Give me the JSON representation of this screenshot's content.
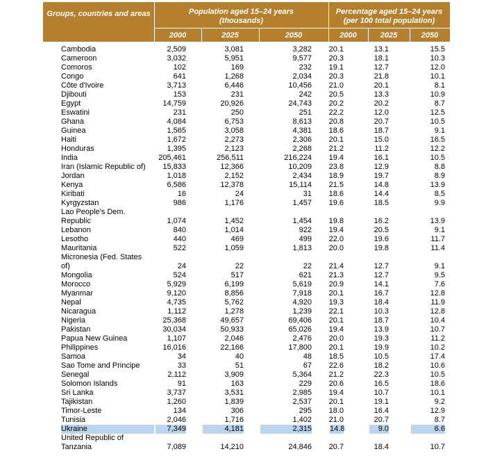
{
  "header": {
    "group_label": "Groups, countries and areas",
    "population": {
      "title": "Population aged 15–24 years",
      "subtitle": "(thousands)",
      "years": [
        "2000",
        "2025",
        "2050"
      ]
    },
    "percentage": {
      "title": "Percentage aged 15–24 years",
      "subtitle": "(per 100 total population)",
      "years": [
        "2000",
        "2025",
        "2050"
      ]
    }
  },
  "table": {
    "highlight_row": 40,
    "rows": [
      {
        "name": [
          "Cambodia"
        ],
        "cells": [
          "2,509",
          "3,081",
          "3,282",
          "20.1",
          "13.1",
          "15.5"
        ]
      },
      {
        "name": [
          "Cameroon"
        ],
        "cells": [
          "3,032",
          "5,951",
          "9,577",
          "20.3",
          "18.1",
          "10.3"
        ]
      },
      {
        "name": [
          "Comoros"
        ],
        "cells": [
          "102",
          "169",
          "232",
          "19.1",
          "12.7",
          "12.0"
        ]
      },
      {
        "name": [
          "Congo"
        ],
        "cells": [
          "641",
          "1,268",
          "2,034",
          "20.3",
          "21.8",
          "10.1"
        ]
      },
      {
        "name": [
          "Côte d'Ivoire"
        ],
        "cells": [
          "3,713",
          "6,446",
          "10,456",
          "21.0",
          "20.1",
          "8.1"
        ]
      },
      {
        "name": [
          "Djibouti"
        ],
        "cells": [
          "153",
          "231",
          "242",
          "20.5",
          "13.3",
          "10.9"
        ]
      },
      {
        "name": [
          "Egypt"
        ],
        "cells": [
          "14,759",
          "20,926",
          "24,743",
          "20.2",
          "20.2",
          "8.7"
        ]
      },
      {
        "name": [
          "Eswatini"
        ],
        "cells": [
          "231",
          "250",
          "251",
          "22.2",
          "12.0",
          "12.5"
        ]
      },
      {
        "name": [
          "Ghana"
        ],
        "cells": [
          "4,084",
          "6,753",
          "8,613",
          "20.8",
          "20.7",
          "10.5"
        ]
      },
      {
        "name": [
          "Guinea"
        ],
        "cells": [
          "1,565",
          "3,058",
          "4,381",
          "18.6",
          "18.7",
          "9.1"
        ]
      },
      {
        "name": [
          "Haiti"
        ],
        "cells": [
          "1,672",
          "2,273",
          "2,306",
          "20.1",
          "15.0",
          "16.5"
        ]
      },
      {
        "name": [
          "Honduras"
        ],
        "cells": [
          "1,395",
          "2,123",
          "2,268",
          "21.2",
          "11.2",
          "12.2"
        ]
      },
      {
        "name": [
          "India"
        ],
        "cells": [
          "205,461",
          "256,511",
          "216,224",
          "19.4",
          "16.1",
          "10.5"
        ]
      },
      {
        "name": [
          "Iran (Islamic Republic of)"
        ],
        "cells": [
          "15,833",
          "12,366",
          "10,209",
          "23.8",
          "12.9",
          "8.8"
        ]
      },
      {
        "name": [
          "Jordan"
        ],
        "cells": [
          "1,018",
          "2,152",
          "2,434",
          "18.9",
          "19.7",
          "8.9"
        ]
      },
      {
        "name": [
          "Kenya"
        ],
        "cells": [
          "6,586",
          "12,378",
          "15,114",
          "21.5",
          "14.8",
          "13.9"
        ]
      },
      {
        "name": [
          "Kiribati"
        ],
        "cells": [
          "16",
          "24",
          "31",
          "18.6",
          "14.4",
          "8.5"
        ]
      },
      {
        "name": [
          "Kyrgyzstan"
        ],
        "cells": [
          "986",
          "1,176",
          "1,457",
          "19.6",
          "18.5",
          "9.9"
        ]
      },
      {
        "name": [
          "Lao People's Dem.",
          "Republic"
        ],
        "cells": [
          "1,074",
          "1,452",
          "1,454",
          "19.8",
          "16.2",
          "13.9"
        ]
      },
      {
        "name": [
          "Lebanon"
        ],
        "cells": [
          "840",
          "1,014",
          "922",
          "19.4",
          "20.5",
          "9.1"
        ]
      },
      {
        "name": [
          "Lesotho"
        ],
        "cells": [
          "440",
          "469",
          "499",
          "22.0",
          "19.6",
          "11.7"
        ]
      },
      {
        "name": [
          "Mauritania"
        ],
        "cells": [
          "522",
          "1,059",
          "1,813",
          "20.0",
          "19.8",
          "11.4"
        ]
      },
      {
        "name": [
          "Micronesia (Fed. States",
          "of)"
        ],
        "cells": [
          "24",
          "22",
          "22",
          "21.4",
          "12.7",
          "9.1"
        ]
      },
      {
        "name": [
          "Mongolia"
        ],
        "cells": [
          "524",
          "517",
          "621",
          "21.3",
          "12.7",
          "9.5"
        ]
      },
      {
        "name": [
          "Morocco"
        ],
        "cells": [
          "5,929",
          "6,199",
          "5,619",
          "20.9",
          "14.1",
          "7.6"
        ]
      },
      {
        "name": [
          "Myanmar"
        ],
        "cells": [
          "9,120",
          "8,856",
          "7,918",
          "20.1",
          "16.7",
          "12.8"
        ]
      },
      {
        "name": [
          "Nepal"
        ],
        "cells": [
          "4,735",
          "5,762",
          "4,920",
          "19.3",
          "18.4",
          "11.9"
        ]
      },
      {
        "name": [
          "Nicaragua"
        ],
        "cells": [
          "1,112",
          "1,278",
          "1,239",
          "22.1",
          "10.3",
          "12.8"
        ]
      },
      {
        "name": [
          "Nigeria"
        ],
        "cells": [
          "25,368",
          "49,657",
          "69,406",
          "20.1",
          "18.7",
          "10.4"
        ]
      },
      {
        "name": [
          "Pakistan"
        ],
        "cells": [
          "30,034",
          "50,933",
          "65,026",
          "19.4",
          "13.9",
          "10.7"
        ]
      },
      {
        "name": [
          "Papua New Guinea"
        ],
        "cells": [
          "1,107",
          "2,046",
          "2,476",
          "20.0",
          "19.3",
          "11.2"
        ]
      },
      {
        "name": [
          "Philippines"
        ],
        "cells": [
          "16,016",
          "22,166",
          "17,800",
          "20.1",
          "19.9",
          "10.2"
        ]
      },
      {
        "name": [
          "Samoa"
        ],
        "cells": [
          "34",
          "40",
          "48",
          "18.5",
          "10.5",
          "17.4"
        ]
      },
      {
        "name": [
          "Sao Tome and Principe"
        ],
        "cells": [
          "33",
          "51",
          "67",
          "22.6",
          "18.2",
          "10.6"
        ]
      },
      {
        "name": [
          "Senegal"
        ],
        "cells": [
          "2,112",
          "3,909",
          "5,364",
          "21.2",
          "22.3",
          "10.5"
        ]
      },
      {
        "name": [
          "Solomon Islands"
        ],
        "cells": [
          "91",
          "163",
          "229",
          "20.6",
          "16.5",
          "18.6"
        ]
      },
      {
        "name": [
          "Sri Lanka"
        ],
        "cells": [
          "3,737",
          "3,531",
          "2,985",
          "19.4",
          "10.7",
          "10.1"
        ]
      },
      {
        "name": [
          "Tajikistan"
        ],
        "cells": [
          "1,260",
          "1,839",
          "2,537",
          "20.1",
          "19.1",
          "9.2"
        ]
      },
      {
        "name": [
          "Timor-Leste"
        ],
        "cells": [
          "134",
          "306",
          "295",
          "18.0",
          "16.4",
          "12.9"
        ]
      },
      {
        "name": [
          "Tunisia"
        ],
        "cells": [
          "2,046",
          "1,716",
          "1,402",
          "21.0",
          "20.7",
          "8.7"
        ]
      },
      {
        "name": [
          "Ukraine"
        ],
        "cells": [
          "7,349",
          "4,181",
          "2,315",
          "14.8",
          "9.0",
          "6.6"
        ]
      },
      {
        "name": [
          "United Republic of",
          "Tanzania"
        ],
        "cells": [
          "7,089",
          "14,210",
          "24,846",
          "20.7",
          "18.4",
          "10.7"
        ]
      }
    ]
  }
}
